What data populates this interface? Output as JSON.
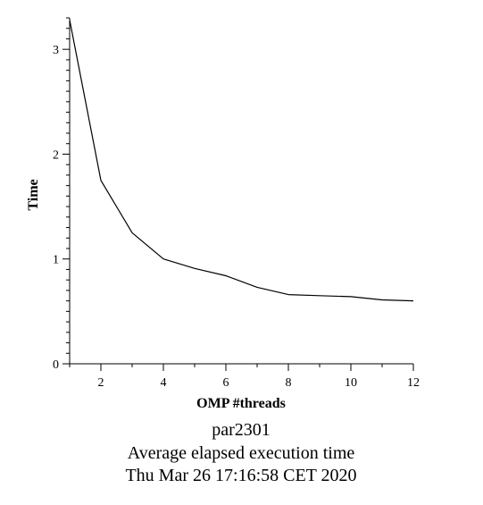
{
  "chart_data": {
    "type": "line",
    "title": "",
    "xlabel": "OMP #threads",
    "ylabel": "Time",
    "xlim": [
      1,
      12
    ],
    "ylim": [
      0,
      3.3
    ],
    "x_ticks": [
      2,
      4,
      6,
      8,
      10,
      12
    ],
    "y_ticks": [
      0,
      1,
      2,
      3
    ],
    "grid": false,
    "series": [
      {
        "x": [
          1,
          2,
          3,
          4,
          5,
          6,
          7,
          8,
          9,
          10,
          11,
          12
        ],
        "y": [
          3.28,
          1.75,
          1.25,
          1.0,
          0.91,
          0.84,
          0.73,
          0.66,
          0.65,
          0.64,
          0.61,
          0.6
        ],
        "color": "#000000"
      }
    ]
  },
  "captions": {
    "line1": "par2301",
    "line2": "Average elapsed execution time",
    "line3": "Thu Mar 26 17:16:58 CET 2020"
  }
}
